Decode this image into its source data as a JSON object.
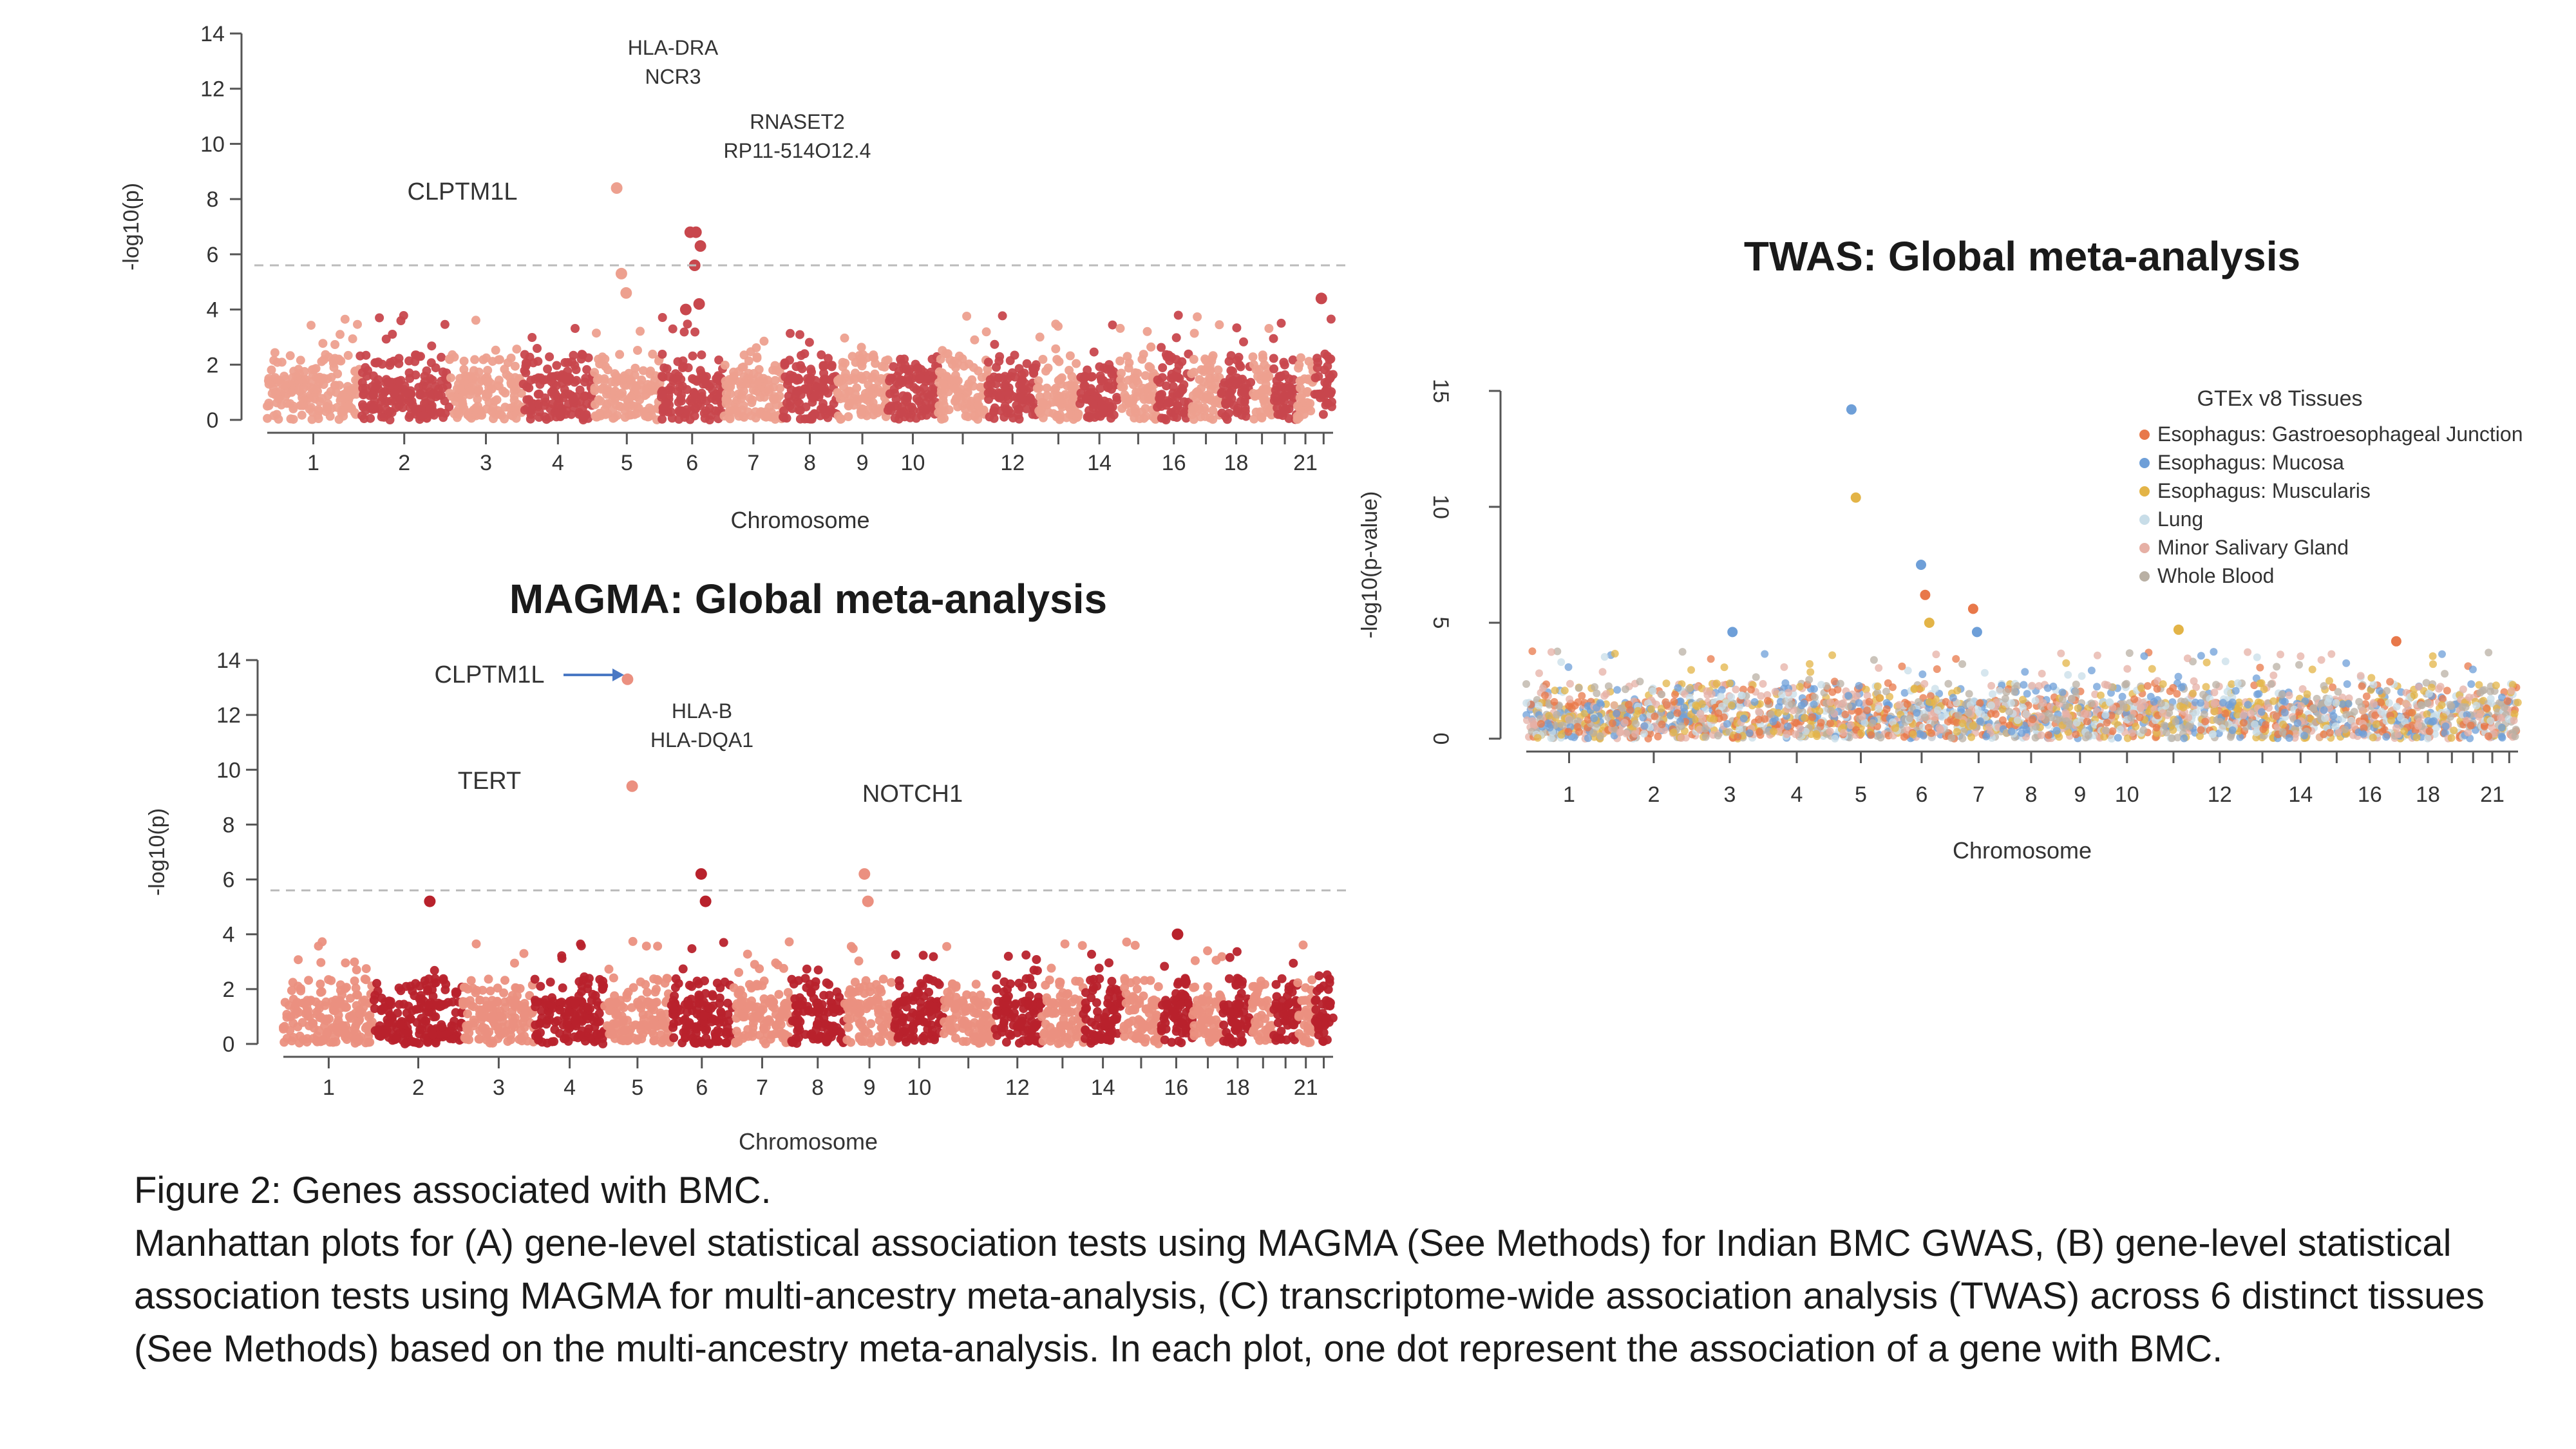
{
  "caption": {
    "title": "Figure 2: Genes associated with BMC.",
    "body": "Manhattan plots for (A) gene-level statistical association tests using MAGMA (See Methods) for Indian BMC GWAS, (B) gene-level statistical association tests using MAGMA for multi-ancestry meta-analysis, (C) transcriptome-wide association analysis (TWAS) across 6 distinct tissues (See Methods) based on the multi-ancestry meta-analysis. In each plot, one dot represent the association of a gene with BMC."
  },
  "colors": {
    "a_light": "#eda08f",
    "a_dark": "#c8474d",
    "b_light": "#eb9080",
    "b_dark": "#b8222c",
    "threshold": "#bbbbbb",
    "arrow": "#4a78c4"
  },
  "chart_data": [
    {
      "id": "A",
      "type": "scatter",
      "title": "",
      "xlabel": "Chromosome",
      "ylabel": "-log10(p)",
      "ylim": [
        0,
        14
      ],
      "y_ticks": [
        0,
        2,
        4,
        6,
        8,
        10,
        12,
        14
      ],
      "x_tick_labels": [
        "1",
        "2",
        "3",
        "4",
        "5",
        "6",
        "7",
        "8",
        "9",
        "10",
        "12",
        "14",
        "16",
        "18",
        "21"
      ],
      "chromosomes": 22,
      "threshold": 5.6,
      "annotations": [
        {
          "chromosome": 5,
          "lines": [
            "CLPTM1L"
          ]
        },
        {
          "chromosome": 6,
          "lines": [
            "HLA-DRA",
            "NCR3"
          ]
        },
        {
          "chromosome": 6,
          "lines": [
            "RNASET2",
            "RP11-514O12.4"
          ]
        }
      ],
      "highlights": [
        {
          "chromosome": 5,
          "p": 8.4
        },
        {
          "chromosome": 5,
          "p": 5.3
        },
        {
          "chromosome": 5,
          "p": 4.6
        },
        {
          "chromosome": 6,
          "p": 6.8
        },
        {
          "chromosome": 6,
          "p": 6.3
        },
        {
          "chromosome": 6,
          "p": 4.0
        },
        {
          "chromosome": 6,
          "p": 6.8
        },
        {
          "chromosome": 6,
          "p": 5.6
        },
        {
          "chromosome": 6,
          "p": 4.2
        },
        {
          "chromosome": 22,
          "p": 4.4
        }
      ]
    },
    {
      "id": "B",
      "type": "scatter",
      "title": "MAGMA: Global meta-analysis",
      "xlabel": "Chromosome",
      "ylabel": "-log10(p)",
      "ylim": [
        0,
        14
      ],
      "y_ticks": [
        0,
        2,
        4,
        6,
        8,
        10,
        12,
        14
      ],
      "x_tick_labels": [
        "1",
        "2",
        "3",
        "4",
        "5",
        "6",
        "7",
        "8",
        "9",
        "10",
        "12",
        "14",
        "16",
        "18",
        "21"
      ],
      "chromosomes": 22,
      "threshold": 5.6,
      "annotations": [
        {
          "chromosome": 5,
          "lines": [
            "CLPTM1L"
          ],
          "arrow": true
        },
        {
          "chromosome": 5,
          "lines": [
            "TERT"
          ]
        },
        {
          "chromosome": 6,
          "lines": [
            "HLA-B",
            "HLA-DQA1"
          ]
        },
        {
          "chromosome": 9,
          "lines": [
            "NOTCH1"
          ]
        }
      ],
      "highlights": [
        {
          "chromosome": 5,
          "p": 13.3
        },
        {
          "chromosome": 5,
          "p": 9.4
        },
        {
          "chromosome": 6,
          "p": 6.2
        },
        {
          "chromosome": 6,
          "p": 5.2
        },
        {
          "chromosome": 2,
          "p": 5.2
        },
        {
          "chromosome": 9,
          "p": 6.2
        },
        {
          "chromosome": 9,
          "p": 5.2
        },
        {
          "chromosome": 16,
          "p": 4.0
        }
      ]
    },
    {
      "id": "C",
      "type": "scatter",
      "title": "TWAS: Global meta-analysis",
      "xlabel": "Chromosome",
      "ylabel": "-log10(p-value)",
      "ylim": [
        0,
        15
      ],
      "y_ticks": [
        0,
        5,
        10,
        15
      ],
      "x_tick_labels": [
        "1",
        "2",
        "3",
        "4",
        "5",
        "6",
        "7",
        "8",
        "9",
        "10",
        "12",
        "14",
        "16",
        "18",
        "21"
      ],
      "chromosomes": 22,
      "legend": {
        "title": "GTEx v8 Tissues",
        "placement": "top-right",
        "entries": [
          {
            "label": "Esophagus: Gastroesophageal Junction",
            "color": "#e8784a"
          },
          {
            "label": "Esophagus: Mucosa",
            "color": "#6e9fd8"
          },
          {
            "label": "Esophagus: Muscularis",
            "color": "#e3b447"
          },
          {
            "label": "Lung",
            "color": "#c8dde8"
          },
          {
            "label": "Minor Salivary Gland",
            "color": "#e6b0a5"
          },
          {
            "label": "Whole Blood",
            "color": "#b9b0a4"
          }
        ]
      },
      "highlights": [
        {
          "chromosome": 5,
          "p": 14.2,
          "tissue": 1
        },
        {
          "chromosome": 5,
          "p": 10.4,
          "tissue": 2
        },
        {
          "chromosome": 6,
          "p": 7.5,
          "tissue": 1
        },
        {
          "chromosome": 6,
          "p": 6.2,
          "tissue": 0
        },
        {
          "chromosome": 6,
          "p": 5.0,
          "tissue": 2
        },
        {
          "chromosome": 7,
          "p": 5.6,
          "tissue": 0
        },
        {
          "chromosome": 7,
          "p": 4.6,
          "tissue": 1
        },
        {
          "chromosome": 3,
          "p": 4.6,
          "tissue": 1
        },
        {
          "chromosome": 11,
          "p": 4.7,
          "tissue": 2
        },
        {
          "chromosome": 17,
          "p": 4.2,
          "tissue": 0
        }
      ]
    }
  ]
}
